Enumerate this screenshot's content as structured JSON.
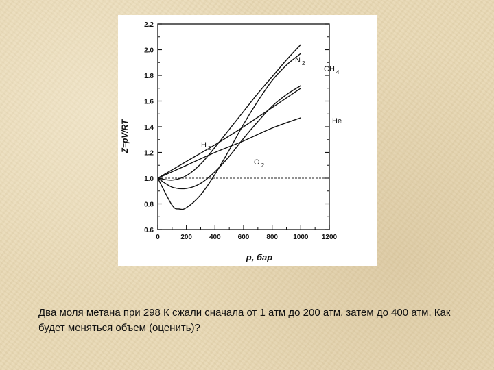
{
  "chart_data": {
    "type": "line",
    "title": "",
    "xlabel": "p, бар",
    "ylabel": "Z=pV/RT",
    "xlim": [
      0,
      1200
    ],
    "ylim": [
      0.6,
      2.2
    ],
    "x_ticks": [
      0,
      200,
      400,
      600,
      800,
      1000,
      1200
    ],
    "y_ticks": [
      0.6,
      0.8,
      1.0,
      1.2,
      1.4,
      1.6,
      1.8,
      2.0,
      2.2
    ],
    "x_tick_labels": [
      "0",
      "200",
      "400",
      "600",
      "800",
      "1000",
      "1200"
    ],
    "y_tick_labels": [
      "0.6",
      "0.8",
      "1.0",
      "1.2",
      "1.4",
      "1.6",
      "1.8",
      "2.0",
      "2.2"
    ],
    "reference_line": {
      "y": 1.0,
      "style": "dashed"
    },
    "grid": false,
    "series": [
      {
        "name": "N",
        "subscript": "2",
        "x": [
          0,
          100,
          200,
          300,
          400,
          500,
          600,
          700,
          800,
          900,
          1000
        ],
        "y": [
          1.0,
          0.985,
          1.02,
          1.11,
          1.24,
          1.38,
          1.52,
          1.66,
          1.79,
          1.92,
          2.04
        ]
      },
      {
        "name": "CH",
        "subscript": "4",
        "x": [
          0,
          100,
          150,
          200,
          300,
          400,
          500,
          600,
          700,
          800,
          900,
          1000
        ],
        "y": [
          1.0,
          0.79,
          0.76,
          0.77,
          0.87,
          1.03,
          1.22,
          1.42,
          1.6,
          1.76,
          1.88,
          1.97
        ]
      },
      {
        "name": "He",
        "subscript": "",
        "x": [
          0,
          200,
          400,
          600,
          800,
          1000
        ],
        "y": [
          1.0,
          1.1,
          1.2,
          1.29,
          1.39,
          1.47
        ]
      },
      {
        "name": "H",
        "subscript": "2",
        "x": [
          0,
          200,
          400,
          600,
          800,
          1000
        ],
        "y": [
          1.0,
          1.13,
          1.26,
          1.4,
          1.55,
          1.7
        ]
      },
      {
        "name": "O",
        "subscript": "2",
        "x": [
          0,
          100,
          200,
          300,
          400,
          500,
          600,
          700,
          800,
          900,
          1000
        ],
        "y": [
          1.0,
          0.93,
          0.92,
          0.96,
          1.05,
          1.17,
          1.31,
          1.44,
          1.56,
          1.65,
          1.72
        ]
      }
    ]
  },
  "question": "Два моля метана при 298 К сжали сначала от 1 атм до 200 атм, затем до 400 атм. Как будет меняться объем (оценить)?"
}
